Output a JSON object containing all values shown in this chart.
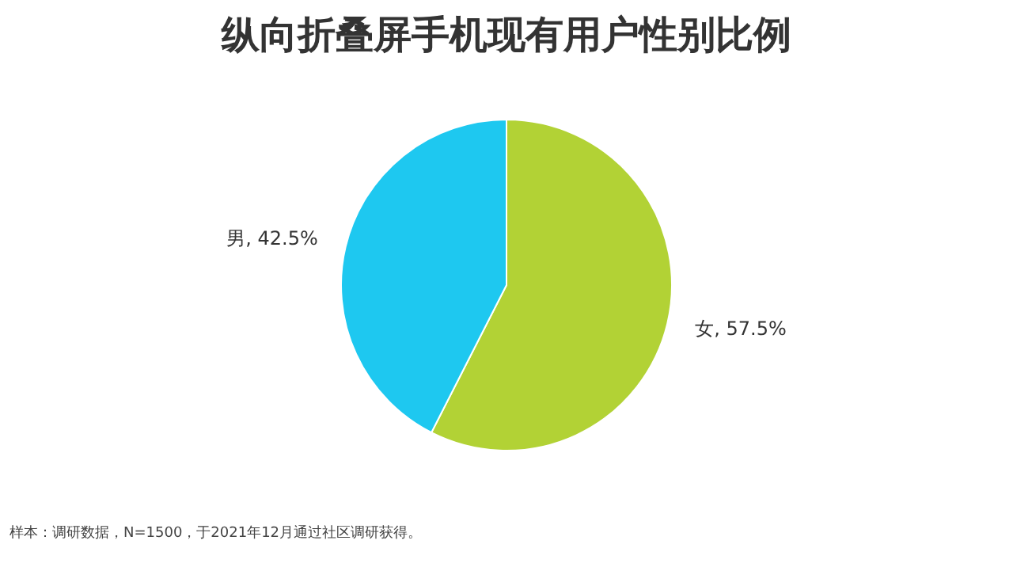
{
  "chart_data": {
    "type": "pie",
    "title": "纵向折叠屏手机现有用户性别比例",
    "categories": [
      "女",
      "男"
    ],
    "values": [
      57.5,
      42.5
    ],
    "colors": [
      "#b2d235",
      "#1ec8f0"
    ],
    "value_labels": [
      "57.5%",
      "42.5%"
    ],
    "legend": false,
    "annotations": [
      "样本：调研数据，N=1500，于2021年12月通过社区调研获得。"
    ]
  }
}
